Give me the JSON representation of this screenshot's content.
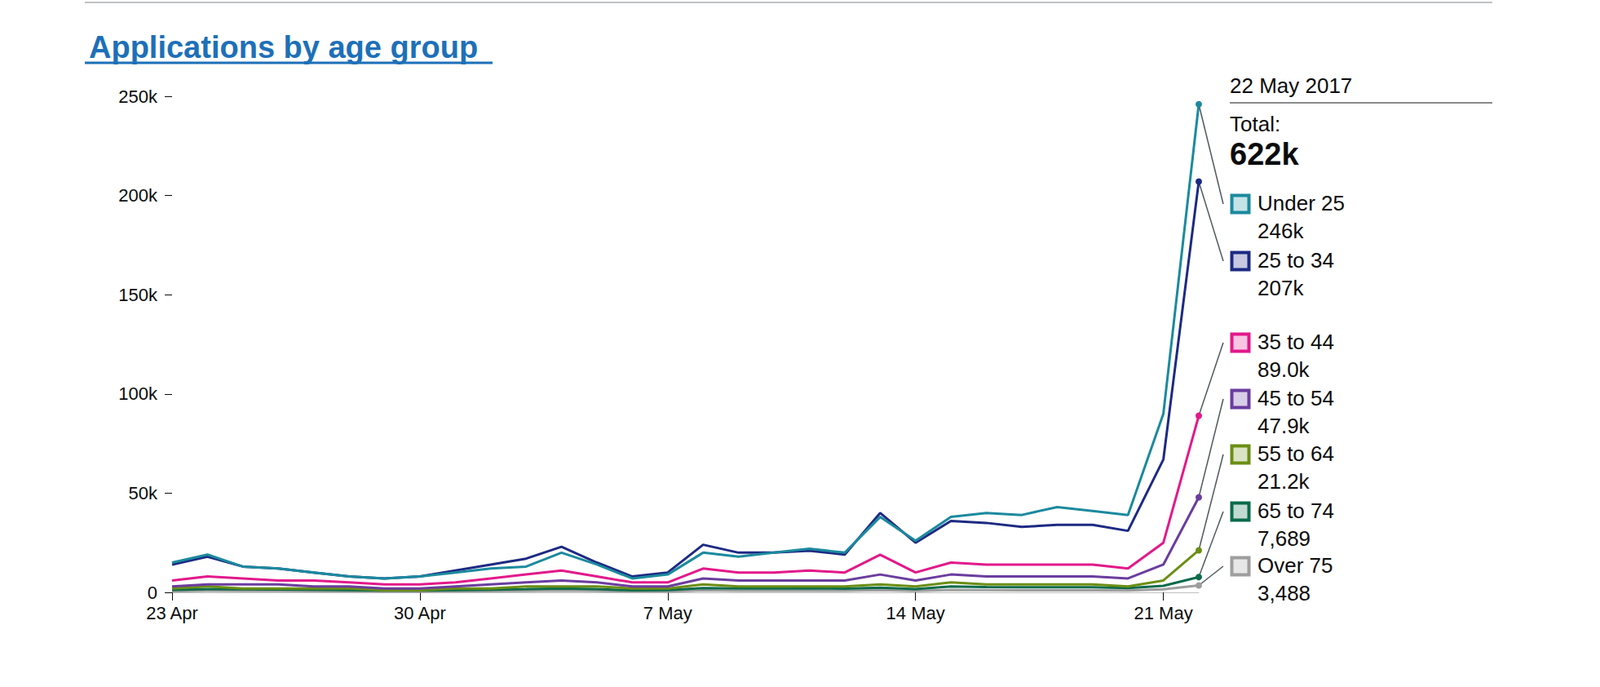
{
  "chart_data": {
    "type": "line",
    "title": "Applications by age group",
    "categories": [
      "23 Apr",
      null,
      null,
      null,
      null,
      null,
      null,
      "30 Apr",
      null,
      null,
      null,
      null,
      null,
      null,
      "7 May",
      null,
      null,
      null,
      null,
      null,
      null,
      "14 May",
      null,
      null,
      null,
      null,
      null,
      null,
      "21 May",
      null
    ],
    "series": [
      {
        "name": "Under 25",
        "color": "#1b8a9e",
        "end_label": "246k",
        "values": [
          15000,
          19000,
          13000,
          12000,
          10000,
          8000,
          7000,
          8000,
          10000,
          12000,
          13000,
          20000,
          14000,
          7000,
          9000,
          20000,
          18000,
          20000,
          22000,
          20000,
          38000,
          26000,
          38000,
          40000,
          39000,
          43000,
          41000,
          39000,
          90000,
          246000
        ]
      },
      {
        "name": "25 to 34",
        "color": "#1d2a83",
        "end_label": "207k",
        "values": [
          14000,
          18000,
          13000,
          12000,
          10000,
          8000,
          7000,
          8000,
          11000,
          14000,
          17000,
          23000,
          15000,
          8000,
          10000,
          24000,
          20000,
          20000,
          21000,
          19000,
          40000,
          25000,
          36000,
          35000,
          33000,
          34000,
          34000,
          31000,
          67000,
          207000
        ]
      },
      {
        "name": "35 to 44",
        "color": "#e2198a",
        "end_label": "89.0k",
        "values": [
          6000,
          8000,
          7000,
          6000,
          6000,
          5000,
          4000,
          4000,
          5000,
          7000,
          9000,
          11000,
          8000,
          5000,
          5000,
          12000,
          10000,
          10000,
          11000,
          10000,
          19000,
          10000,
          15000,
          14000,
          14000,
          14000,
          14000,
          12000,
          25000,
          89000
        ]
      },
      {
        "name": "45 to 54",
        "color": "#6a3d9e",
        "end_label": "47.9k",
        "values": [
          3000,
          4000,
          4000,
          4000,
          3000,
          3000,
          2000,
          2000,
          3000,
          4000,
          5000,
          6000,
          5000,
          3000,
          3000,
          7000,
          6000,
          6000,
          6000,
          6000,
          9000,
          6000,
          9000,
          8000,
          8000,
          8000,
          8000,
          7000,
          14000,
          47900
        ]
      },
      {
        "name": "55 to 64",
        "color": "#6b8e14",
        "end_label": "21.2k",
        "values": [
          2000,
          3000,
          2000,
          2000,
          2000,
          2000,
          1000,
          1000,
          2000,
          2000,
          3000,
          3000,
          3000,
          2000,
          2000,
          4000,
          3000,
          3000,
          3000,
          3000,
          4000,
          3000,
          5000,
          4000,
          4000,
          4000,
          4000,
          3000,
          6000,
          21200
        ]
      },
      {
        "name": "65 to 74",
        "color": "#0b6b4a",
        "end_label": "7,689",
        "values": [
          1200,
          1600,
          1500,
          1400,
          1300,
          1100,
          900,
          900,
          1100,
          1300,
          1600,
          2000,
          1600,
          1000,
          1100,
          2200,
          2000,
          2000,
          2100,
          1900,
          2400,
          1600,
          3000,
          2700,
          2600,
          2600,
          2600,
          2200,
          3300,
          7689
        ]
      },
      {
        "name": "Over 75",
        "color": "#9e9e9e",
        "end_label": "3,488",
        "values": [
          500,
          800,
          700,
          700,
          600,
          500,
          400,
          400,
          500,
          600,
          700,
          900,
          700,
          400,
          400,
          1000,
          800,
          800,
          900,
          800,
          1100,
          700,
          1200,
          1100,
          1000,
          1000,
          1000,
          900,
          1500,
          3488
        ]
      }
    ],
    "ylim": [
      0,
      250000
    ],
    "yticks": [
      {
        "value": 0,
        "label": "0"
      },
      {
        "value": 50000,
        "label": "50k"
      },
      {
        "value": 100000,
        "label": "100k"
      },
      {
        "value": 150000,
        "label": "150k"
      },
      {
        "value": 200000,
        "label": "200k"
      },
      {
        "value": 250000,
        "label": "250k"
      }
    ],
    "grid": false,
    "annotation": {
      "date": "22 May 2017",
      "total_label": "Total:",
      "total": "622k"
    }
  }
}
